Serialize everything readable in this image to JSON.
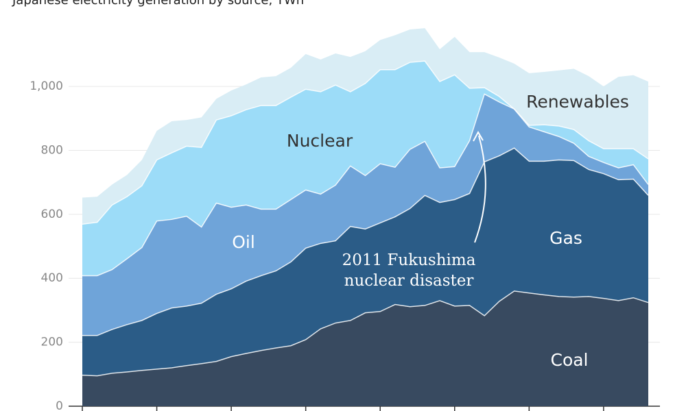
{
  "chart_data": {
    "type": "stacked_area",
    "title": "Japanese electricity generation by source, TWh",
    "categories": [
      null,
      null,
      null,
      null,
      null,
      null,
      null,
      null,
      null,
      null,
      null,
      null,
      null,
      null,
      null,
      null,
      null,
      null,
      null,
      null,
      null,
      null,
      null,
      null,
      null,
      null,
      null,
      null,
      null,
      null,
      null,
      null,
      null,
      null,
      null,
      null,
      null,
      null,
      null
    ],
    "ylim": [
      0,
      1270
    ],
    "yticks": [
      0,
      200,
      400,
      600,
      800,
      {
        "value": 1000,
        "label": "1,000"
      }
    ],
    "grid": true,
    "series": [
      {
        "name": "Coal",
        "color": "#384a60",
        "values": [
          97,
          95,
          103,
          107,
          112,
          116,
          120,
          127,
          133,
          140,
          155,
          165,
          174,
          182,
          189,
          208,
          242,
          260,
          268,
          292,
          296,
          318,
          311,
          315,
          330,
          313,
          315,
          283,
          328,
          360,
          354,
          348,
          343,
          341,
          343,
          337,
          330,
          339,
          324
        ]
      },
      {
        "name": "Gas",
        "color": "#2b5c87",
        "values": [
          124,
          126,
          137,
          148,
          156,
          174,
          187,
          186,
          189,
          210,
          212,
          226,
          234,
          241,
          262,
          286,
          267,
          257,
          294,
          262,
          277,
          274,
          307,
          344,
          307,
          333,
          350,
          481,
          455,
          447,
          412,
          418,
          427,
          427,
          397,
          390,
          378,
          371,
          335
        ]
      },
      {
        "name": "Oil",
        "color": "#6fa4d9",
        "values": [
          187,
          187,
          187,
          206,
          228,
          289,
          277,
          281,
          238,
          285,
          255,
          238,
          208,
          193,
          195,
          182,
          154,
          174,
          189,
          167,
          185,
          155,
          185,
          169,
          108,
          103,
          165,
          212,
          168,
          122,
          107,
          92,
          73,
          54,
          41,
          35,
          37,
          45,
          34
        ]
      },
      {
        "name": "Nuclear",
        "color": "#9cdcf8",
        "values": [
          161,
          167,
          202,
          194,
          193,
          191,
          208,
          219,
          249,
          260,
          286,
          298,
          324,
          324,
          320,
          315,
          320,
          313,
          232,
          288,
          294,
          305,
          272,
          251,
          270,
          287,
          164,
          20,
          17,
          0,
          5,
          22,
          33,
          43,
          49,
          43,
          60,
          50,
          80
        ]
      },
      {
        "name": "Renewables",
        "color": "#d9edf5",
        "values": [
          83,
          80,
          64,
          68,
          81,
          91,
          99,
          82,
          94,
          66,
          79,
          79,
          88,
          92,
          92,
          110,
          101,
          99,
          109,
          101,
          93,
          108,
          103,
          103,
          101,
          119,
          113,
          111,
          122,
          142,
          163,
          165,
          174,
          190,
          202,
          195,
          225,
          230,
          242
        ]
      }
    ],
    "annotation": [
      "2011 Fukushima",
      "nuclear disaster"
    ]
  }
}
